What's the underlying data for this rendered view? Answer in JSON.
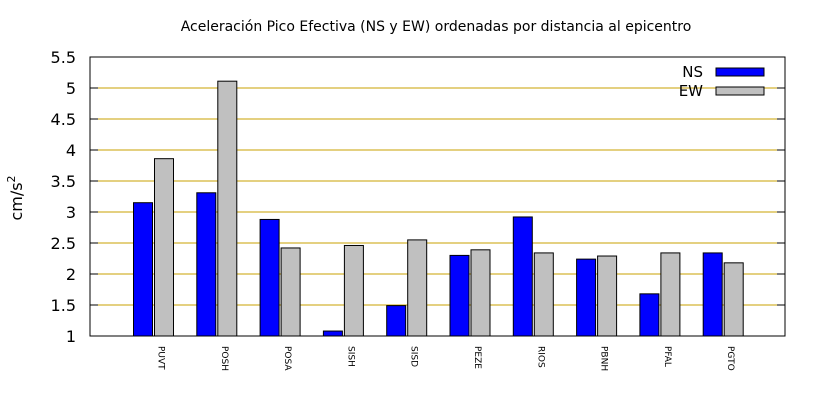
{
  "chart_data": {
    "type": "bar",
    "title": "Aceleración Pico Efectiva (NS y EW) ordenadas por distancia al epicentro",
    "xlabel": "",
    "ylabel": "cm/s",
    "ylabel_superscript": "2",
    "ylim": [
      1,
      5.5
    ],
    "yticks": [
      "1",
      "1.5",
      "2",
      "2.5",
      "3",
      "3.5",
      "4",
      "4.5",
      "5",
      "5.5"
    ],
    "grid": "horizontal",
    "legend_position": "top-right",
    "categories": [
      "PUVT",
      "POSH",
      "POSA",
      "SISH",
      "SISD",
      "PEZE",
      "RIOS",
      "PBNH",
      "PFAL",
      "PGTO"
    ],
    "series": [
      {
        "name": "NS",
        "color": "#0000ff",
        "values": [
          3.15,
          3.31,
          2.88,
          1.08,
          1.49,
          2.3,
          2.92,
          2.24,
          1.68,
          2.34
        ]
      },
      {
        "name": "EW",
        "color": "#c0c0c0",
        "values": [
          3.86,
          5.11,
          2.42,
          2.46,
          2.55,
          2.39,
          2.34,
          2.29,
          2.34,
          2.18
        ]
      }
    ],
    "colors": {
      "grid": "#c8a000",
      "axis": "#000000"
    }
  }
}
